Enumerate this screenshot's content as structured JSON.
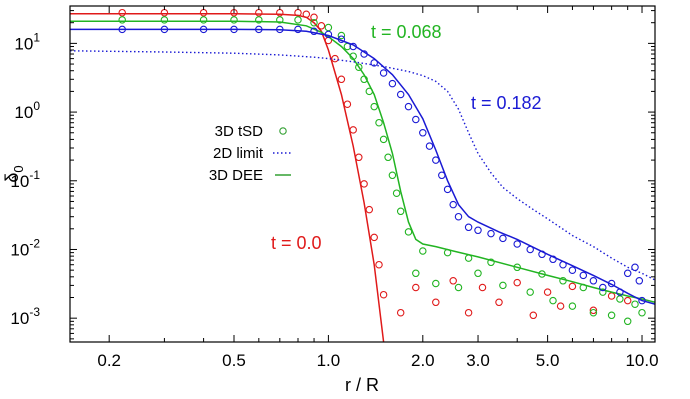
{
  "chart_data": {
    "type": "line",
    "xlabel": "r / R",
    "ylabel": "δ",
    "ylabel_sub": "0",
    "xscale": "log",
    "yscale": "log",
    "xlim": [
      0.15,
      11.0
    ],
    "ylim": [
      0.00045,
      35
    ],
    "xticks": [
      {
        "value": 0.2,
        "label": "0.2"
      },
      {
        "value": 0.5,
        "label": "0.5"
      },
      {
        "value": 1.0,
        "label": "1.0"
      },
      {
        "value": 2.0,
        "label": "2.0"
      },
      {
        "value": 3.0,
        "label": "3.0"
      },
      {
        "value": 5.0,
        "label": "5.0"
      },
      {
        "value": 10.0,
        "label": "10.0"
      }
    ],
    "yticks": [
      {
        "value": 10,
        "base": "10",
        "exp": "1"
      },
      {
        "value": 1,
        "base": "10",
        "exp": "0"
      },
      {
        "value": 0.1,
        "base": "10",
        "exp": "-1"
      },
      {
        "value": 0.01,
        "base": "10",
        "exp": "-2"
      },
      {
        "value": 0.001,
        "base": "10",
        "exp": "-3"
      }
    ],
    "legend_position": "center-left",
    "legend": [
      {
        "label": "3D tSD",
        "style": "circle",
        "color": "#33a033"
      },
      {
        "label": "2D limit",
        "style": "dotted",
        "color": "#1a1ad4"
      },
      {
        "label": "3D DEE",
        "style": "solid",
        "color": "#33a033"
      }
    ],
    "annotations": [
      {
        "text": "t = 0.068",
        "color": "#22b422"
      },
      {
        "text": "t = 0.182",
        "color": "#1a1ad4"
      },
      {
        "text": "t = 0.0",
        "color": "#e01a1a"
      }
    ],
    "series": [
      {
        "time": "0.0",
        "color": "#e01a1a",
        "dee": {
          "x": [
            0.15,
            0.5,
            0.7,
            0.8,
            0.85,
            0.9,
            0.95,
            1.0,
            1.1,
            1.2,
            1.3,
            1.4,
            1.5
          ],
          "y": [
            27,
            27,
            26.5,
            25.5,
            24,
            20,
            15,
            8,
            1.8,
            0.32,
            0.048,
            0.006,
            0.00045
          ]
        },
        "tsd": {
          "x": [
            0.22,
            0.3,
            0.4,
            0.5,
            0.6,
            0.7,
            0.8,
            0.85,
            0.9,
            0.95,
            1.0,
            1.05,
            1.1,
            1.15,
            1.2,
            1.25,
            1.3,
            1.35,
            1.4,
            1.45,
            1.5,
            1.7,
            1.9,
            2.2,
            2.5,
            2.8,
            3.1,
            3.5,
            4.0,
            4.5,
            5.0,
            5.5,
            6.0,
            7.0,
            8.0,
            9.0
          ],
          "y": [
            28,
            28,
            28,
            28,
            28,
            28,
            28,
            26.5,
            24,
            18,
            11,
            6,
            3,
            1.3,
            0.55,
            0.22,
            0.09,
            0.038,
            0.015,
            0.006,
            0.0022,
            0.0012,
            0.0028,
            0.0017,
            0.0035,
            0.0012,
            0.0028,
            0.0017,
            0.0033,
            0.0011,
            0.0024,
            0.0015,
            0.0029,
            0.0013,
            0.0021,
            0.0018
          ]
        }
      },
      {
        "time": "0.068",
        "color": "#22b422",
        "dee": {
          "x": [
            0.15,
            0.5,
            0.7,
            0.85,
            0.95,
            1.0,
            1.1,
            1.2,
            1.3,
            1.4,
            1.5,
            1.6,
            1.7,
            1.8,
            1.9,
            2.0,
            2.2,
            2.5,
            3.0,
            4.0,
            5.0,
            6.0,
            7.0,
            8.0,
            9.0,
            10.0,
            11.0
          ],
          "dee_y": [],
          "y": [
            21,
            21,
            20.5,
            18,
            14.5,
            12.5,
            9,
            6,
            3.5,
            1.8,
            0.7,
            0.25,
            0.07,
            0.025,
            0.014,
            0.012,
            0.011,
            0.0095,
            0.0078,
            0.0055,
            0.0042,
            0.0034,
            0.0028,
            0.0024,
            0.0021,
            0.0019,
            0.0017
          ]
        },
        "tsd": {
          "x": [
            0.22,
            0.3,
            0.4,
            0.5,
            0.6,
            0.7,
            0.8,
            0.9,
            1.0,
            1.1,
            1.15,
            1.2,
            1.25,
            1.3,
            1.35,
            1.4,
            1.45,
            1.5,
            1.55,
            1.6,
            1.65,
            1.7,
            1.8,
            1.9,
            2.0,
            2.2,
            2.4,
            2.6,
            2.8,
            3.0,
            3.3,
            3.6,
            4.0,
            4.4,
            4.8,
            5.2,
            5.6,
            6.0,
            6.5,
            7.0,
            7.5,
            8.0,
            8.5,
            9.0,
            9.5,
            10.0
          ],
          "y": [
            22,
            22,
            22,
            22,
            22,
            22,
            22,
            20,
            17,
            13,
            9,
            6.5,
            4.5,
            3,
            2,
            1.2,
            0.7,
            0.4,
            0.22,
            0.12,
            0.066,
            0.036,
            0.018,
            0.0045,
            0.0095,
            0.0032,
            0.009,
            0.0028,
            0.0075,
            0.0045,
            0.0065,
            0.003,
            0.0055,
            0.0024,
            0.0044,
            0.0018,
            0.0035,
            0.0015,
            0.0028,
            0.0012,
            0.0024,
            0.0011,
            0.0019,
            0.0009,
            0.0016,
            0.0012
          ]
        }
      },
      {
        "time": "0.182",
        "color": "#1a1ad4",
        "dee": {
          "x": [
            0.15,
            0.5,
            0.7,
            0.85,
            1.0,
            1.2,
            1.4,
            1.6,
            1.8,
            2.0,
            2.2,
            2.4,
            2.6,
            2.8,
            3.0,
            3.5,
            4.0,
            5.0,
            6.0,
            7.0,
            8.0,
            9.0,
            10.0,
            11.0
          ],
          "y": [
            16,
            16,
            15.8,
            15,
            13,
            9.5,
            6,
            3.5,
            1.8,
            0.8,
            0.28,
            0.1,
            0.045,
            0.03,
            0.025,
            0.018,
            0.014,
            0.0085,
            0.0058,
            0.0042,
            0.0031,
            0.0023,
            0.0018,
            0.0016
          ]
        },
        "tsd": {
          "x": [
            0.22,
            0.3,
            0.4,
            0.5,
            0.6,
            0.7,
            0.8,
            0.9,
            1.0,
            1.1,
            1.2,
            1.3,
            1.4,
            1.5,
            1.6,
            1.7,
            1.8,
            1.9,
            2.0,
            2.1,
            2.2,
            2.3,
            2.4,
            2.5,
            2.6,
            2.8,
            3.0,
            3.3,
            3.6,
            4.0,
            4.4,
            4.8,
            5.2,
            5.6,
            6.0,
            6.5,
            7.0,
            7.5,
            8.0,
            8.5,
            9.0,
            9.5,
            9.8,
            10.0
          ],
          "y": [
            16,
            16,
            16,
            16,
            16,
            16,
            16,
            15,
            13.5,
            11.5,
            9,
            7,
            5.2,
            3.7,
            2.6,
            1.8,
            1.2,
            0.78,
            0.5,
            0.32,
            0.2,
            0.12,
            0.075,
            0.045,
            0.03,
            0.021,
            0.019,
            0.017,
            0.0145,
            0.012,
            0.01,
            0.0085,
            0.0072,
            0.006,
            0.005,
            0.0042,
            0.0035,
            0.0028,
            0.0032,
            0.0024,
            0.0045,
            0.0055,
            0.0035,
            0.0018
          ]
        }
      },
      {
        "name": "2D limit",
        "color": "#1a1ad4",
        "style": "dotted",
        "x": [
          0.15,
          0.3,
          0.5,
          0.7,
          0.9,
          1.0,
          1.2,
          1.5,
          1.8,
          2.0,
          2.2,
          2.4,
          2.6,
          2.8,
          3.0,
          3.3,
          3.6,
          4.0,
          4.5,
          5.0,
          6.0,
          7.0,
          8.0,
          9.0,
          10.0,
          11.0
        ],
        "y": [
          7.8,
          7.5,
          7.2,
          6.8,
          6.3,
          6.0,
          5.4,
          4.6,
          3.9,
          3.4,
          2.8,
          2.0,
          1.1,
          0.5,
          0.25,
          0.13,
          0.08,
          0.055,
          0.038,
          0.028,
          0.016,
          0.011,
          0.0075,
          0.0055,
          0.0045,
          0.0036
        ]
      }
    ]
  }
}
